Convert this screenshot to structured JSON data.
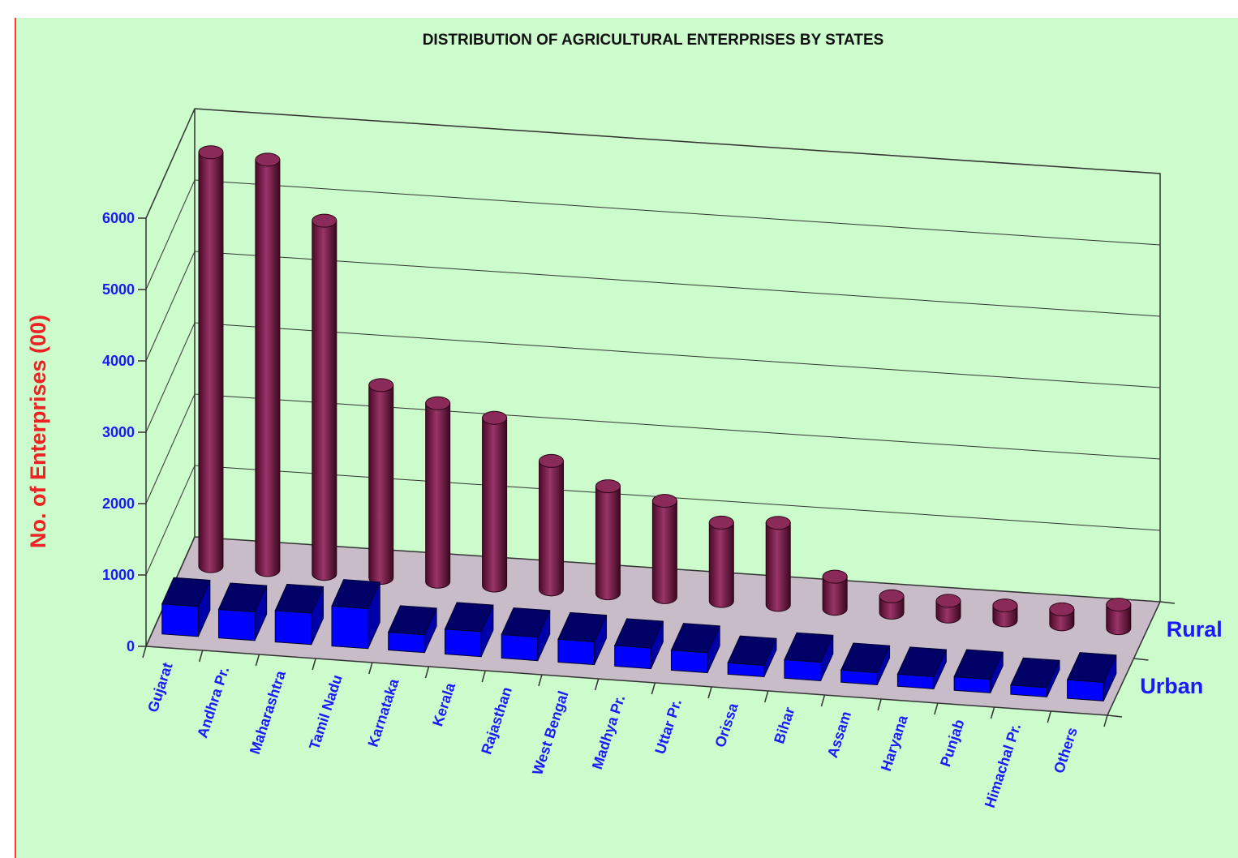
{
  "chart_data": {
    "type": "bar",
    "title": "DISTRIBUTION OF AGRICULTURAL ENTERPRISES BY STATES",
    "ylabel": "No. of Enterprises (00)",
    "xlabel": "",
    "ylim": [
      0,
      6000
    ],
    "yticks": [
      "0",
      "1000",
      "2000",
      "3000",
      "4000",
      "5000",
      "6000"
    ],
    "categories": [
      "Gujarat",
      "Andhra Pr.",
      "Maharashtra",
      "Tamil Nadu",
      "Karnataka",
      "Kerala",
      "Rajasthan",
      "West Bengal",
      "Madhya Pr.",
      "Uttar Pr.",
      "Orissa",
      "Bihar",
      "Assam",
      "Haryana",
      "Punjab",
      "Himachal Pr.",
      "Others"
    ],
    "series": [
      {
        "name": "Rural",
        "color": "#7a1a48",
        "shape": "cylinder",
        "values": [
          5800,
          5750,
          4950,
          2700,
          2500,
          2350,
          1800,
          1500,
          1350,
          1100,
          1150,
          450,
          230,
          220,
          210,
          210,
          330
        ]
      },
      {
        "name": "Urban",
        "color": "#0000ff",
        "shape": "block",
        "values": [
          420,
          400,
          440,
          560,
          250,
          350,
          330,
          320,
          290,
          280,
          160,
          260,
          170,
          170,
          190,
          130,
          260
        ]
      }
    ],
    "grid": true,
    "legend": "series labels at right of depth axis"
  }
}
